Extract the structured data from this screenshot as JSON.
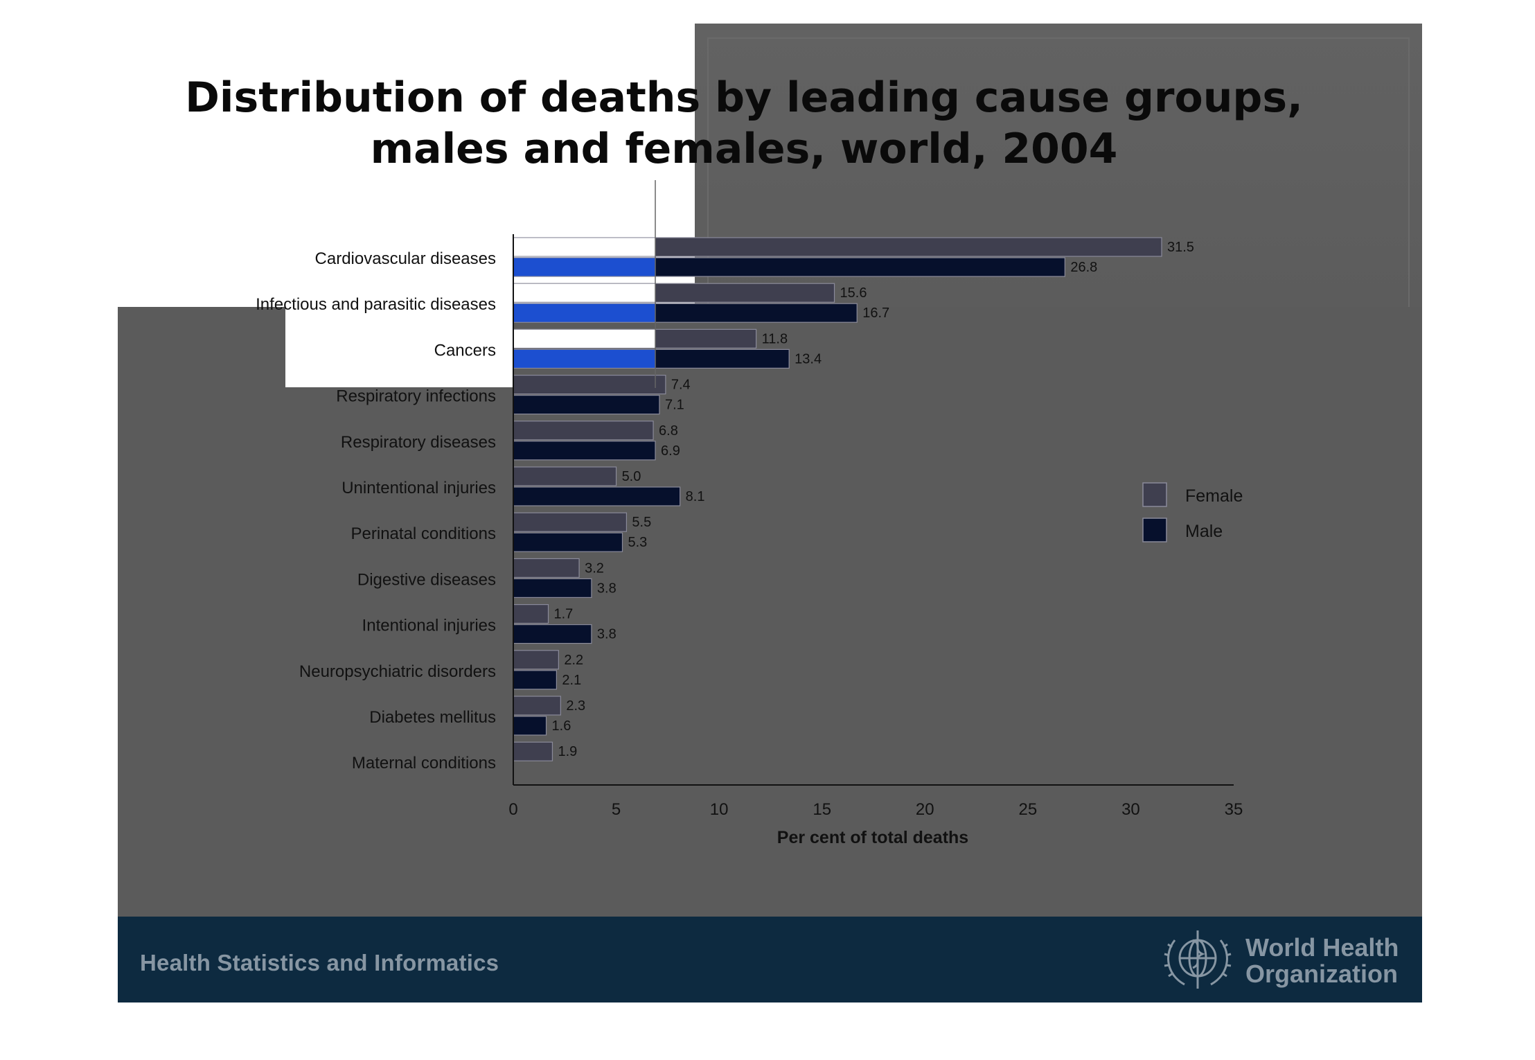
{
  "title_line1": "Distribution of deaths by leading cause groups,",
  "title_line2": "males and females, world, 2004",
  "footer": {
    "left_text": "Health Statistics and Informatics",
    "org_line1": "World Health",
    "org_line2": "Organization"
  },
  "colors": {
    "female": "#3f3f4f",
    "male": "#06102c",
    "highlight_female": "#ffffff",
    "highlight_male": "#1c4fd0",
    "slide_bg": "#5b5b5b",
    "footer_band": "#0d2a40"
  },
  "chart_data": {
    "type": "bar",
    "orientation": "horizontal",
    "categories": [
      "Cardiovascular diseases",
      "Infectious and parasitic diseases",
      "Cancers",
      "Respiratory infections",
      "Respiratory diseases",
      "Unintentional injuries",
      "Perinatal conditions",
      "Digestive diseases",
      "Intentional injuries",
      "Neuropsychiatric disorders",
      "Diabetes mellitus",
      "Maternal conditions"
    ],
    "series": [
      {
        "name": "Female",
        "values": [
          31.5,
          15.6,
          11.8,
          7.4,
          6.8,
          5.0,
          5.5,
          3.2,
          1.7,
          2.2,
          2.3,
          1.9
        ],
        "labels": [
          "31.5",
          "15.6",
          "11.8",
          "7.4",
          "6.8",
          "5.0",
          "5.5",
          "3.2",
          "1.7",
          "2.2",
          "2.3",
          "1.9"
        ]
      },
      {
        "name": "Male",
        "values": [
          26.8,
          16.7,
          13.4,
          7.1,
          6.9,
          8.1,
          5.3,
          3.8,
          3.8,
          2.1,
          1.6,
          null
        ],
        "labels": [
          "26.8",
          "16.7",
          "13.4",
          "7.1",
          "6.9",
          "8.1",
          "5.3",
          "3.8",
          "3.8",
          "2.1",
          "1.6",
          null
        ]
      }
    ],
    "xlabel": "Per cent of total deaths",
    "xlim": [
      0,
      35
    ],
    "xticks": [
      "0",
      "5",
      "10",
      "15",
      "20",
      "25",
      "30",
      "35"
    ],
    "highlight": {
      "categories_count": 3,
      "up_to_value": 6.9
    },
    "legend": {
      "position": "right",
      "entries": [
        "Female",
        "Male"
      ]
    }
  }
}
